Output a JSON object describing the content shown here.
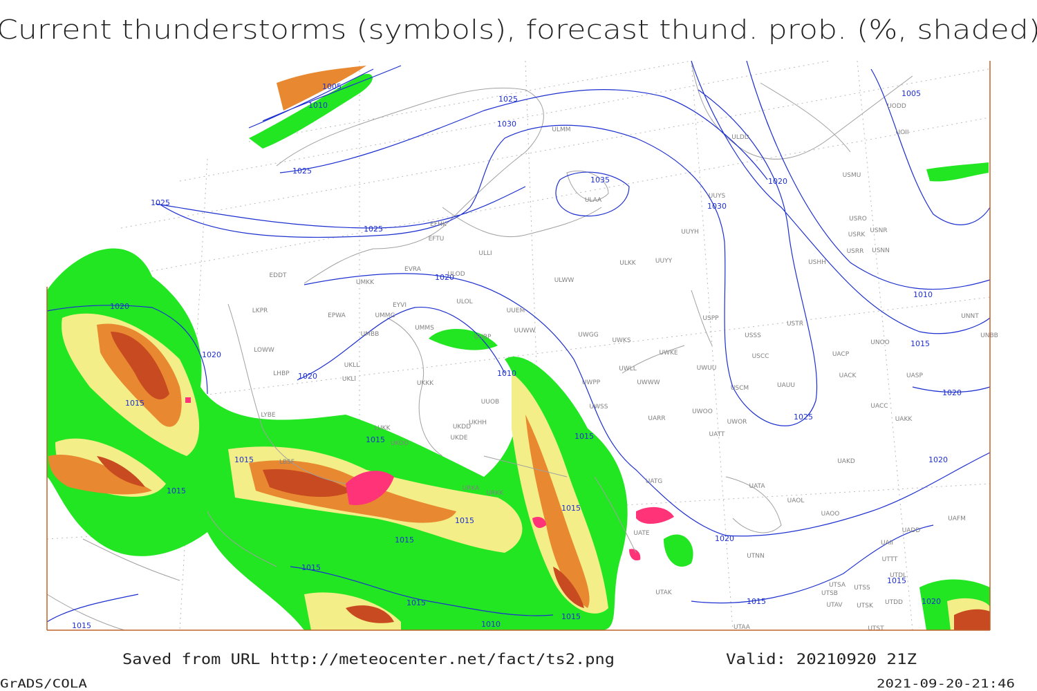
{
  "title": "Current thunderstorms (symbols), forecast thund. prob. (%, shaded)",
  "footer": {
    "saved": "Saved from URL http://meteocenter.net/fact/ts2.png",
    "valid": "Valid: 20210920 21Z",
    "software": "GrADS/COLA",
    "timestamp": "2021-09-20-21:46"
  },
  "isobar_labels": [
    1005,
    1010,
    1025,
    1030,
    1025,
    1035,
    1025,
    1030,
    1025,
    1020,
    1020,
    1020,
    1020,
    1010,
    1015,
    1015,
    1015,
    1015,
    1015,
    1015,
    1015,
    1015,
    1015,
    1015,
    1015,
    1010,
    1015,
    1020,
    1015,
    1025,
    1020,
    1015,
    1010,
    1005,
    1020,
    1015,
    1020,
    1020
  ],
  "stations": [
    "UODD",
    "UOII",
    "ULDD",
    "ULMM",
    "USMU",
    "UUYS",
    "ULAA",
    "USRO",
    "USRK",
    "USNR",
    "USRR",
    "USNN",
    "UUYH",
    "EFHK",
    "EFTU",
    "ULLI",
    "ULKK",
    "UUYY",
    "USHH",
    "EVRA",
    "ULOD",
    "EDDT",
    "UMKK",
    "ULWW",
    "ULOL",
    "EYVI",
    "UUEM",
    "EPWA",
    "UMMG",
    "LKPR",
    "UMMS",
    "UUWW",
    "USPP",
    "USTR",
    "UWGG",
    "UWKS",
    "USSS",
    "UNNT",
    "UNBB",
    "UNOO",
    "LOWW",
    "UWKE",
    "USCC",
    "UACP",
    "UWUU",
    "UKLL",
    "LHBP",
    "UKLI",
    "UWLL",
    "UACK",
    "UASP",
    "UKKK",
    "UWPP",
    "UWWW",
    "USCM",
    "UAUU",
    "UUOB",
    "LYBE",
    "UWSS",
    "UARR",
    "UWOO",
    "UWOR",
    "UACC",
    "UAKK",
    "UKHH",
    "UKDD",
    "LUKK",
    "UKOO",
    "UKDE",
    "UATT",
    "UAKD",
    "UATG",
    "UATA",
    "UAOL",
    "UAOO",
    "URKA",
    "URKK",
    "UAFM",
    "UADD",
    "UATE",
    "UTNN",
    "UAII",
    "UTTT",
    "UTDL",
    "UTSA",
    "UTSB",
    "UTSS",
    "UTDD",
    "UTAV",
    "UTSK",
    "UTAK",
    "UTAA",
    "UTST",
    "LBSF",
    "UMBB",
    "UUBP"
  ]
}
